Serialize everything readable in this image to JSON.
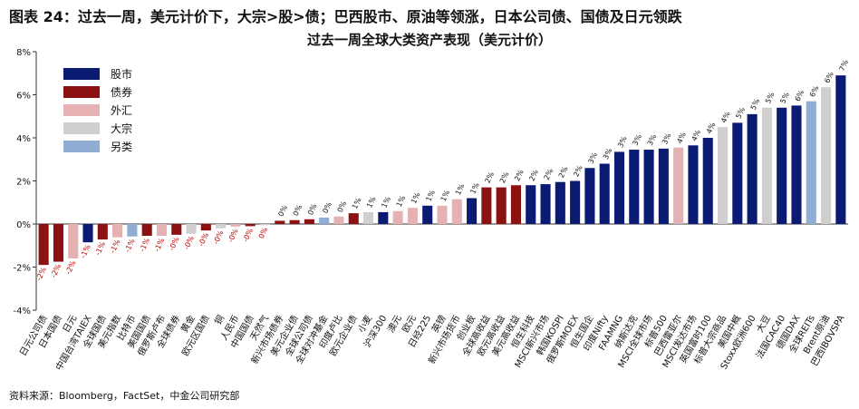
{
  "figure_title": "图表 24：过去一周，美元计价下，大宗>股>债；巴西股市、原油等领涨，日本公司债、国债及日元领跌",
  "source": "资料来源：Bloomberg，FactSet，中金公司研究部",
  "colors": {
    "股市": "#0b1a73",
    "债券": "#8b1113",
    "外汇": "#e5b1b2",
    "大宗": "#cfcfcf",
    "另类": "#90add4",
    "negative_label": "#c00000"
  },
  "chart_data": {
    "type": "bar",
    "title": "过去一周全球大类资产表现（美元计价）",
    "ylim": [
      -4,
      8
    ],
    "yticks": [
      "-4%",
      "-2%",
      "0%",
      "2%",
      "4%",
      "6%",
      "8%"
    ],
    "ytick_values": [
      -4,
      -2,
      0,
      2,
      4,
      6,
      8
    ],
    "grid": false,
    "legend_position": "top-left",
    "legend": [
      "股市",
      "债券",
      "外汇",
      "大宗",
      "另类"
    ],
    "categories": [
      "日元公司债",
      "日本国债",
      "日元",
      "中国台湾TAIEX",
      "全球国债",
      "美元指数",
      "比特币",
      "美国国债",
      "俄罗斯卢布",
      "全球债券",
      "黄金",
      "欧元区国债",
      "铜",
      "人民币",
      "中国国债",
      "天然气",
      "新兴市场债券",
      "美元企业债",
      "全球公司债",
      "全球对冲基金",
      "印度卢比",
      "欧元企业债",
      "小麦",
      "沪深300",
      "澳元",
      "欧元",
      "日经225",
      "英镑",
      "新兴市场货币",
      "创业板",
      "全球高收益",
      "欧元高收益",
      "美元高收益",
      "恒生科技",
      "MSCI新兴市场",
      "韩国KOSPI",
      "俄罗斯MOEX",
      "恒生国企",
      "印度Nifty",
      "FAAMNG",
      "纳斯达克",
      "MSCI全球市场",
      "标普500",
      "巴西雷亚尔",
      "MSCI发达市场",
      "英国富时100",
      "标普大宗商品",
      "美国中概",
      "Stoxx欧洲600",
      "大豆",
      "法国CAC40",
      "德国DAX",
      "全球REITs",
      "Brent原油",
      "巴西IBOVSPA"
    ],
    "asset_class": [
      "债券",
      "债券",
      "外汇",
      "股市",
      "债券",
      "外汇",
      "另类",
      "债券",
      "外汇",
      "债券",
      "大宗",
      "债券",
      "大宗",
      "外汇",
      "债券",
      "大宗",
      "债券",
      "债券",
      "债券",
      "另类",
      "外汇",
      "债券",
      "大宗",
      "股市",
      "外汇",
      "外汇",
      "股市",
      "外汇",
      "外汇",
      "股市",
      "债券",
      "债券",
      "债券",
      "股市",
      "股市",
      "股市",
      "股市",
      "股市",
      "股市",
      "股市",
      "股市",
      "股市",
      "股市",
      "外汇",
      "股市",
      "股市",
      "大宗",
      "股市",
      "股市",
      "大宗",
      "股市",
      "股市",
      "另类",
      "大宗",
      "股市"
    ],
    "values": [
      -1.9,
      -1.75,
      -1.6,
      -0.85,
      -0.72,
      -0.62,
      -0.58,
      -0.55,
      -0.55,
      -0.5,
      -0.45,
      -0.3,
      -0.2,
      -0.12,
      -0.1,
      -0.05,
      0.15,
      0.18,
      0.22,
      0.3,
      0.35,
      0.5,
      0.55,
      0.55,
      0.6,
      0.75,
      0.85,
      0.85,
      1.15,
      1.2,
      1.7,
      1.7,
      1.8,
      1.8,
      1.85,
      1.95,
      2.0,
      2.6,
      2.8,
      3.35,
      3.45,
      3.45,
      3.5,
      3.55,
      3.65,
      4.0,
      4.5,
      4.7,
      5.1,
      5.4,
      5.4,
      5.5,
      5.7,
      6.35,
      6.9
    ],
    "data_labels": [
      "-2%",
      "-2%",
      "-2%",
      "-1%",
      "-1%",
      "-1%",
      "-1%",
      "-1%",
      "-1%",
      "-0%",
      "-0%",
      "-0%",
      "-0%",
      "-0%",
      "-0%",
      "0%",
      "0%",
      "0%",
      "0%",
      "0%",
      "0%",
      "1%",
      "1%",
      "1%",
      "1%",
      "1%",
      "1%",
      "1%",
      "1%",
      "1%",
      "2%",
      "2%",
      "2%",
      "2%",
      "2%",
      "2%",
      "2%",
      "3%",
      "3%",
      "3%",
      "3%",
      "3%",
      "3%",
      "4%",
      "4%",
      "4%",
      "4%",
      "5%",
      "5%",
      "5%",
      "5%",
      "6%",
      "6%",
      "6%",
      "7%"
    ]
  }
}
